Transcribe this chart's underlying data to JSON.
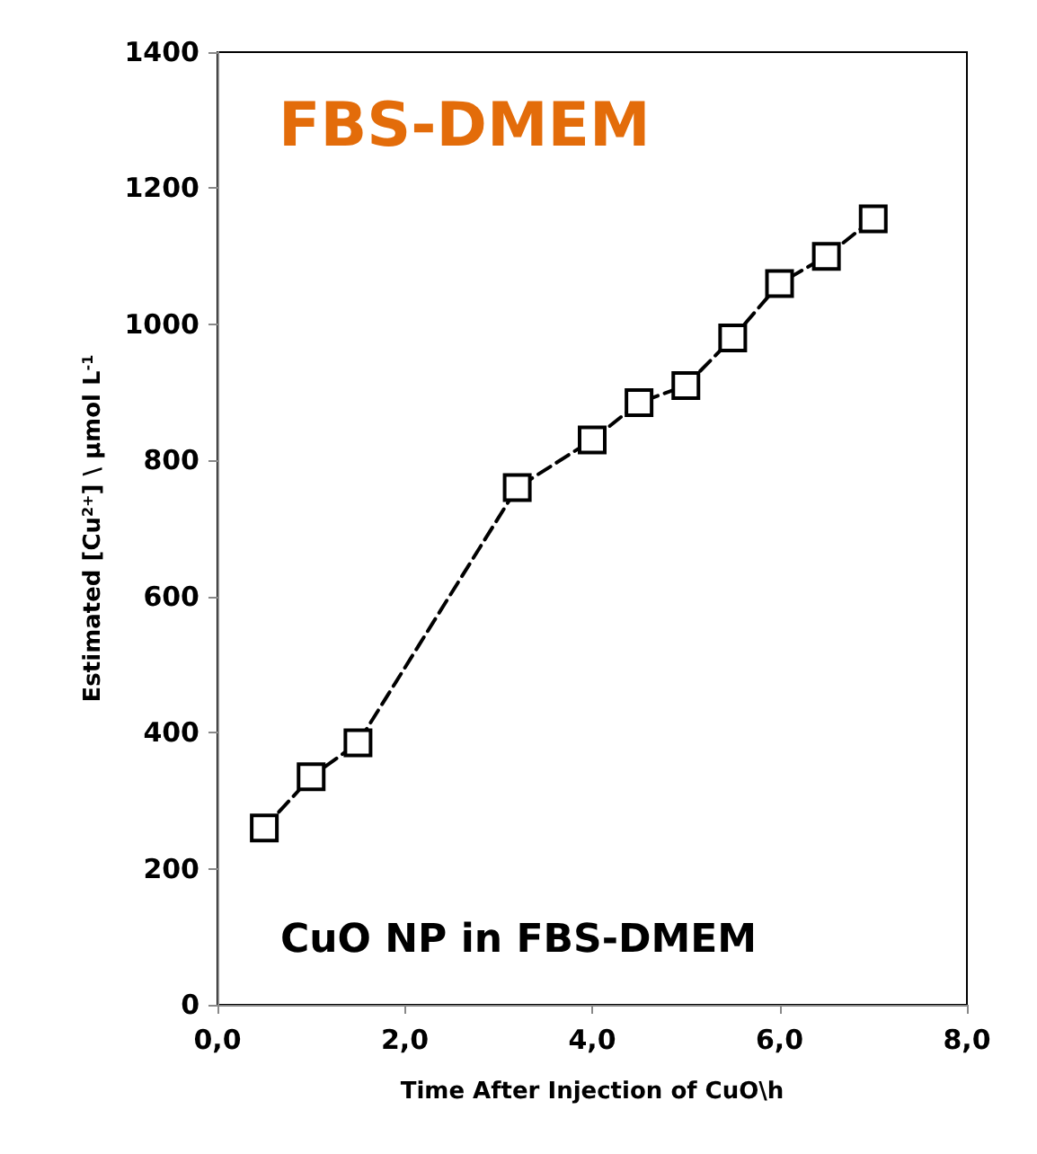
{
  "chart_data": {
    "type": "line",
    "title": "FBS-DMEM",
    "xlabel": "Time After Injection of CuO\\h",
    "ylabel": "Estimated [Cu$^{2+}$] \\ µmol L$^{-1}$",
    "annotations": [
      "CuO NP in FBS-DMEM"
    ],
    "x": [
      0.5,
      1.0,
      1.5,
      3.2,
      4.0,
      4.5,
      5.0,
      5.5,
      6.0,
      6.5,
      7.0
    ],
    "series": [
      {
        "color": "#000000",
        "values": [
          260,
          335,
          385,
          760,
          830,
          885,
          910,
          980,
          1060,
          1100,
          1155
        ]
      }
    ],
    "xlim": [
      0,
      8
    ],
    "xticks": [
      {
        "value": 0,
        "label": "0,0"
      },
      {
        "value": 2,
        "label": "2,0"
      },
      {
        "value": 4,
        "label": "4,0"
      },
      {
        "value": 6,
        "label": "6,0"
      },
      {
        "value": 8,
        "label": "8,0"
      }
    ],
    "ylim": [
      0,
      1400
    ],
    "yticks": [
      0,
      200,
      400,
      600,
      800,
      1000,
      1200,
      1400
    ],
    "marker": "square",
    "line_style": "dashed",
    "grid": false
  }
}
